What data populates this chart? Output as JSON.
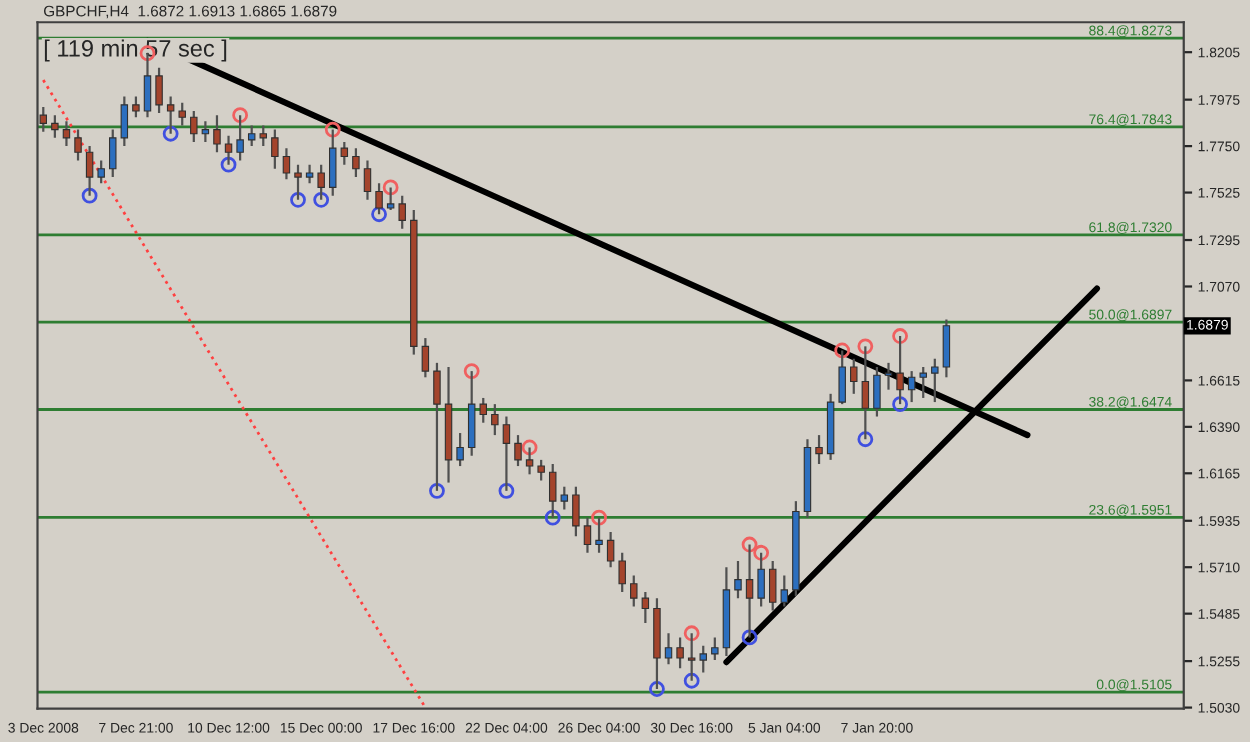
{
  "chart_data": {
    "type": "candlestick",
    "title": "GBPCHF,H4  1.6872 1.6913 1.6865 1.6879",
    "categories": [
      "3 Dec 2008",
      null,
      null,
      null,
      null,
      null,
      null,
      null,
      "7 Dec 21:00",
      null,
      null,
      null,
      null,
      null,
      null,
      null,
      "10 Dec 12:00",
      null,
      null,
      null,
      null,
      null,
      null,
      null,
      "15 Dec 00:00",
      null,
      null,
      null,
      null,
      null,
      null,
      null,
      "17 Dec 16:00",
      null,
      null,
      null,
      null,
      null,
      null,
      null,
      "22 Dec 04:00",
      null,
      null,
      null,
      null,
      null,
      null,
      null,
      "26 Dec 04:00",
      null,
      null,
      null,
      null,
      null,
      null,
      null,
      "30 Dec 16:00",
      null,
      null,
      null,
      null,
      null,
      null,
      null,
      "5 Jan 04:00",
      null,
      null,
      null,
      null,
      null,
      null,
      null,
      "7 Jan 20:00",
      null,
      null,
      null,
      null,
      null,
      null,
      null,
      null,
      null,
      null,
      null,
      null,
      null,
      null,
      null,
      null,
      null,
      null,
      null,
      null,
      null,
      null,
      null,
      null,
      null,
      null
    ],
    "ohlc": [
      [
        1.79,
        1.794,
        1.782,
        1.786
      ],
      [
        1.786,
        1.79,
        1.779,
        1.783
      ],
      [
        1.783,
        1.787,
        1.775,
        1.779
      ],
      [
        1.779,
        1.783,
        1.768,
        1.772
      ],
      [
        1.772,
        1.775,
        1.751,
        1.76
      ],
      [
        1.76,
        1.768,
        1.757,
        1.764
      ],
      [
        1.764,
        1.783,
        1.76,
        1.779
      ],
      [
        1.779,
        1.799,
        1.775,
        1.795
      ],
      [
        1.795,
        1.799,
        1.789,
        1.792
      ],
      [
        1.792,
        1.82,
        1.789,
        1.809
      ],
      [
        1.809,
        1.813,
        1.791,
        1.795
      ],
      [
        1.795,
        1.799,
        1.781,
        1.792
      ],
      [
        1.792,
        1.796,
        1.785,
        1.789
      ],
      [
        1.789,
        1.792,
        1.777,
        1.781
      ],
      [
        1.781,
        1.787,
        1.777,
        1.783
      ],
      [
        1.783,
        1.79,
        1.772,
        1.776
      ],
      [
        1.776,
        1.78,
        1.766,
        1.772
      ],
      [
        1.772,
        1.79,
        1.768,
        1.778
      ],
      [
        1.778,
        1.785,
        1.775,
        1.781
      ],
      [
        1.781,
        1.785,
        1.775,
        1.779
      ],
      [
        1.779,
        1.783,
        1.764,
        1.77
      ],
      [
        1.77,
        1.774,
        1.759,
        1.762
      ],
      [
        1.762,
        1.766,
        1.749,
        1.76
      ],
      [
        1.76,
        1.766,
        1.757,
        1.762
      ],
      [
        1.762,
        1.766,
        1.749,
        1.755
      ],
      [
        1.755,
        1.783,
        1.751,
        1.774
      ],
      [
        1.774,
        1.777,
        1.766,
        1.77
      ],
      [
        1.77,
        1.774,
        1.76,
        1.764
      ],
      [
        1.764,
        1.768,
        1.749,
        1.753
      ],
      [
        1.753,
        1.757,
        1.742,
        1.745
      ],
      [
        1.745,
        1.755,
        1.744,
        1.747
      ],
      [
        1.747,
        1.751,
        1.735,
        1.739
      ],
      [
        1.739,
        1.744,
        1.674,
        1.678
      ],
      [
        1.678,
        1.682,
        1.663,
        1.666
      ],
      [
        1.666,
        1.67,
        1.608,
        1.65
      ],
      [
        1.65,
        1.668,
        1.612,
        1.623
      ],
      [
        1.623,
        1.636,
        1.62,
        1.629
      ],
      [
        1.629,
        1.666,
        1.625,
        1.65
      ],
      [
        1.65,
        1.653,
        1.641,
        1.645
      ],
      [
        1.645,
        1.65,
        1.635,
        1.64
      ],
      [
        1.64,
        1.644,
        1.608,
        1.631
      ],
      [
        1.631,
        1.635,
        1.62,
        1.623
      ],
      [
        1.623,
        1.629,
        1.616,
        1.62
      ],
      [
        1.62,
        1.623,
        1.613,
        1.617
      ],
      [
        1.617,
        1.621,
        1.595,
        1.603
      ],
      [
        1.603,
        1.61,
        1.599,
        1.606
      ],
      [
        1.606,
        1.61,
        1.586,
        1.591
      ],
      [
        1.591,
        1.595,
        1.578,
        1.582
      ],
      [
        1.582,
        1.595,
        1.578,
        1.584
      ],
      [
        1.584,
        1.588,
        1.571,
        1.574
      ],
      [
        1.574,
        1.578,
        1.559,
        1.563
      ],
      [
        1.563,
        1.567,
        1.552,
        1.556
      ],
      [
        1.556,
        1.559,
        1.544,
        1.551
      ],
      [
        1.551,
        1.556,
        1.512,
        1.527
      ],
      [
        1.527,
        1.539,
        1.524,
        1.532
      ],
      [
        1.532,
        1.537,
        1.522,
        1.527
      ],
      [
        1.527,
        1.539,
        1.516,
        1.526
      ],
      [
        1.526,
        1.533,
        1.52,
        1.529
      ],
      [
        1.529,
        1.537,
        1.526,
        1.532
      ],
      [
        1.532,
        1.571,
        1.528,
        1.56
      ],
      [
        1.56,
        1.574,
        1.556,
        1.565
      ],
      [
        1.565,
        1.582,
        1.537,
        1.556
      ],
      [
        1.556,
        1.578,
        1.552,
        1.57
      ],
      [
        1.57,
        1.574,
        1.55,
        1.554
      ],
      [
        1.554,
        1.567,
        1.552,
        1.56
      ],
      [
        1.56,
        1.603,
        1.557,
        1.598
      ],
      [
        1.598,
        1.633,
        1.595,
        1.629
      ],
      [
        1.629,
        1.635,
        1.621,
        1.626
      ],
      [
        1.626,
        1.655,
        1.623,
        1.651
      ],
      [
        1.651,
        1.676,
        1.65,
        1.668
      ],
      [
        1.668,
        1.672,
        1.655,
        1.661
      ],
      [
        1.661,
        1.678,
        1.633,
        1.648
      ],
      [
        1.648,
        1.668,
        1.644,
        1.664
      ],
      [
        1.664,
        1.67,
        1.657,
        1.665
      ],
      [
        1.665,
        1.683,
        1.65,
        1.657
      ],
      [
        1.657,
        1.666,
        1.651,
        1.663
      ],
      [
        1.663,
        1.668,
        1.653,
        1.665
      ],
      [
        1.665,
        1.672,
        1.651,
        1.668
      ],
      [
        1.668,
        1.691,
        1.663,
        1.688
      ],
      null,
      null,
      null,
      null,
      null,
      null,
      null,
      null,
      null,
      null,
      null,
      null,
      null,
      null,
      null,
      null,
      null,
      null,
      null,
      null
    ],
    "colors": [
      "#a4442c",
      "#a4442c",
      "#a4442c",
      "#a4442c",
      "#a4442c",
      "#2c6fbf",
      "#2c6fbf",
      "#2c6fbf",
      "#a4442c",
      "#2c6fbf",
      "#a4442c",
      "#a4442c",
      "#a4442c",
      "#a4442c",
      "#2c6fbf",
      "#a4442c",
      "#a4442c",
      "#2c6fbf",
      "#2c6fbf",
      "#a4442c",
      "#a4442c",
      "#a4442c",
      "#a4442c",
      "#2c6fbf",
      "#a4442c",
      "#2c6fbf",
      "#a4442c",
      "#a4442c",
      "#a4442c",
      "#a4442c",
      "#2c6fbf",
      "#a4442c",
      "#a4442c",
      "#a4442c",
      "#a4442c",
      "#a4442c",
      "#2c6fbf",
      "#2c6fbf",
      "#a4442c",
      "#a4442c",
      "#a4442c",
      "#a4442c",
      "#a4442c",
      "#a4442c",
      "#a4442c",
      "#2c6fbf",
      "#a4442c",
      "#a4442c",
      "#2c6fbf",
      "#a4442c",
      "#a4442c",
      "#a4442c",
      "#a4442c",
      "#a4442c",
      "#2c6fbf",
      "#a4442c",
      "#a4442c",
      "#2c6fbf",
      "#2c6fbf",
      "#2c6fbf",
      "#2c6fbf",
      "#a4442c",
      "#2c6fbf",
      "#a4442c",
      "#2c6fbf",
      "#2c6fbf",
      "#2c6fbf",
      "#a4442c",
      "#2c6fbf",
      "#2c6fbf",
      "#a4442c",
      "#a4442c",
      "#2c6fbf",
      "#2c6fbf",
      "#a4442c",
      "#2c6fbf",
      "#2c6fbf",
      "#2c6fbf",
      "#2c6fbf",
      null,
      null,
      null,
      null,
      null,
      null,
      null,
      null,
      null,
      null,
      null,
      null,
      null,
      null,
      null,
      null,
      null,
      null,
      null,
      null
    ],
    "series": [
      {
        "type": "line",
        "color": "#ff4040",
        "line_style": "dotted",
        "values": [
          1.807,
          null,
          null,
          null,
          null,
          null,
          null,
          null,
          null,
          null,
          null,
          null,
          null,
          null,
          null,
          null,
          null,
          null,
          null,
          null,
          null,
          null,
          null,
          null,
          null,
          null,
          null,
          null,
          null,
          null,
          null,
          null,
          null,
          1.503,
          null,
          null,
          null,
          null,
          null,
          null,
          null,
          null,
          null,
          null,
          null,
          null,
          null,
          null,
          null,
          null,
          null,
          null,
          null,
          null,
          null,
          null,
          null,
          null,
          null,
          null,
          null,
          null,
          null,
          null,
          null,
          null,
          null,
          null,
          null,
          null,
          null,
          null,
          null,
          null,
          null,
          null,
          null,
          null,
          null,
          null,
          null,
          null,
          null,
          null,
          null,
          null,
          null,
          null,
          null,
          null,
          null,
          null,
          null,
          null,
          null,
          null,
          null,
          null,
          null
        ]
      },
      {
        "type": "line",
        "color": "#000000",
        "line_style": "solid",
        "values": [
          null,
          null,
          null,
          null,
          null,
          null,
          null,
          null,
          null,
          1.826,
          null,
          null,
          null,
          null,
          null,
          null,
          null,
          null,
          null,
          null,
          null,
          null,
          null,
          null,
          null,
          null,
          null,
          null,
          null,
          null,
          null,
          null,
          null,
          null,
          null,
          null,
          null,
          null,
          null,
          null,
          null,
          null,
          null,
          null,
          null,
          null,
          null,
          null,
          null,
          null,
          null,
          null,
          null,
          null,
          null,
          null,
          null,
          null,
          null,
          null,
          null,
          null,
          null,
          null,
          null,
          null,
          null,
          null,
          null,
          null,
          null,
          null,
          null,
          null,
          null,
          null,
          null,
          null,
          null,
          null,
          null,
          null,
          null,
          null,
          null,
          1.635,
          null,
          null,
          null,
          null,
          null,
          null,
          null,
          null,
          null,
          null,
          null,
          null,
          null
        ]
      },
      {
        "type": "line",
        "color": "#000000",
        "line_style": "solid",
        "values": [
          null,
          null,
          null,
          null,
          null,
          null,
          null,
          null,
          null,
          null,
          null,
          null,
          null,
          null,
          null,
          null,
          null,
          null,
          null,
          null,
          null,
          null,
          null,
          null,
          null,
          null,
          null,
          null,
          null,
          null,
          null,
          null,
          null,
          null,
          null,
          null,
          null,
          null,
          null,
          null,
          null,
          null,
          null,
          null,
          null,
          null,
          null,
          null,
          null,
          null,
          null,
          null,
          null,
          null,
          null,
          null,
          null,
          null,
          null,
          1.525,
          null,
          null,
          null,
          null,
          null,
          null,
          null,
          null,
          null,
          null,
          null,
          null,
          null,
          null,
          null,
          null,
          null,
          null,
          null,
          null,
          null,
          null,
          null,
          null,
          null,
          null,
          null,
          null,
          null,
          null,
          null,
          1.706,
          null,
          null,
          null,
          null,
          null,
          null,
          null
        ]
      },
      {
        "type": "scatter",
        "color": "#f06060",
        "marker": "circle",
        "values": [
          null,
          null,
          null,
          null,
          null,
          null,
          null,
          null,
          null,
          1.82,
          null,
          null,
          null,
          null,
          null,
          null,
          null,
          1.79,
          null,
          null,
          null,
          null,
          null,
          null,
          null,
          1.783,
          null,
          null,
          null,
          null,
          1.755,
          null,
          null,
          null,
          null,
          null,
          null,
          1.666,
          null,
          null,
          null,
          null,
          1.629,
          null,
          null,
          null,
          null,
          null,
          1.595,
          null,
          null,
          null,
          null,
          null,
          null,
          null,
          1.539,
          null,
          null,
          null,
          null,
          1.582,
          1.578,
          null,
          null,
          null,
          null,
          null,
          null,
          1.676,
          null,
          1.678,
          null,
          null,
          1.683,
          null,
          null,
          null,
          null,
          null,
          null,
          null,
          null,
          null,
          null,
          null,
          null,
          null,
          null,
          null,
          null,
          null,
          null,
          null,
          null,
          null,
          null,
          null,
          null
        ]
      },
      {
        "type": "scatter",
        "color": "#4050e0",
        "marker": "circle",
        "values": [
          null,
          null,
          null,
          null,
          1.751,
          null,
          null,
          null,
          null,
          null,
          null,
          1.781,
          null,
          null,
          null,
          null,
          1.766,
          null,
          null,
          null,
          null,
          null,
          1.749,
          null,
          1.749,
          null,
          null,
          null,
          null,
          1.742,
          null,
          null,
          null,
          null,
          1.608,
          null,
          null,
          null,
          null,
          null,
          1.608,
          null,
          null,
          null,
          1.595,
          null,
          null,
          null,
          null,
          null,
          null,
          null,
          null,
          1.512,
          null,
          null,
          1.516,
          null,
          null,
          null,
          null,
          1.537,
          null,
          null,
          null,
          null,
          null,
          null,
          null,
          null,
          null,
          1.633,
          null,
          null,
          1.65,
          null,
          null,
          null,
          null,
          null,
          null,
          null,
          null,
          null,
          null,
          null,
          null,
          null,
          null,
          null,
          null,
          null,
          null,
          null,
          null,
          null,
          null,
          null,
          null
        ]
      }
    ],
    "ref_lines": [
      {
        "axis": "y",
        "value": 1.8273,
        "label": "88.4@1.8273",
        "color": "#2e7d32"
      },
      {
        "axis": "y",
        "value": 1.7843,
        "label": "76.4@1.7843",
        "color": "#2e7d32"
      },
      {
        "axis": "y",
        "value": 1.732,
        "label": "61.8@1.7320",
        "color": "#2e7d32"
      },
      {
        "axis": "y",
        "value": 1.6897,
        "label": "50.0@1.6897",
        "color": "#2e7d32"
      },
      {
        "axis": "y",
        "value": 1.6474,
        "label": "38.2@1.6474",
        "color": "#2e7d32"
      },
      {
        "axis": "y",
        "value": 1.5951,
        "label": "23.6@1.5951",
        "color": "#2e7d32"
      },
      {
        "axis": "y",
        "value": 1.5105,
        "label": "0.0@1.5105",
        "color": "#2e7d32"
      }
    ],
    "annotations": [
      "[ 119 min 57 sec ]",
      {
        "text": "1.6879",
        "y": 1.6879
      }
    ],
    "ylim": [
      1.5025,
      1.835
    ],
    "yticks": [
      1.8205,
      1.7975,
      {
        "value": 1.775,
        "label": "1.7750"
      },
      1.7525,
      1.7295,
      {
        "value": 1.707,
        "label": "1.7070"
      },
      {
        "value": 1.6845,
        "label": null
      },
      1.6615,
      {
        "value": 1.639,
        "label": "1.6390"
      },
      1.6165,
      1.5935,
      {
        "value": 1.571,
        "label": "1.5710"
      },
      1.5485,
      1.5255,
      {
        "value": 1.503,
        "label": "1.5030"
      }
    ],
    "grid": false,
    "legend": false
  }
}
